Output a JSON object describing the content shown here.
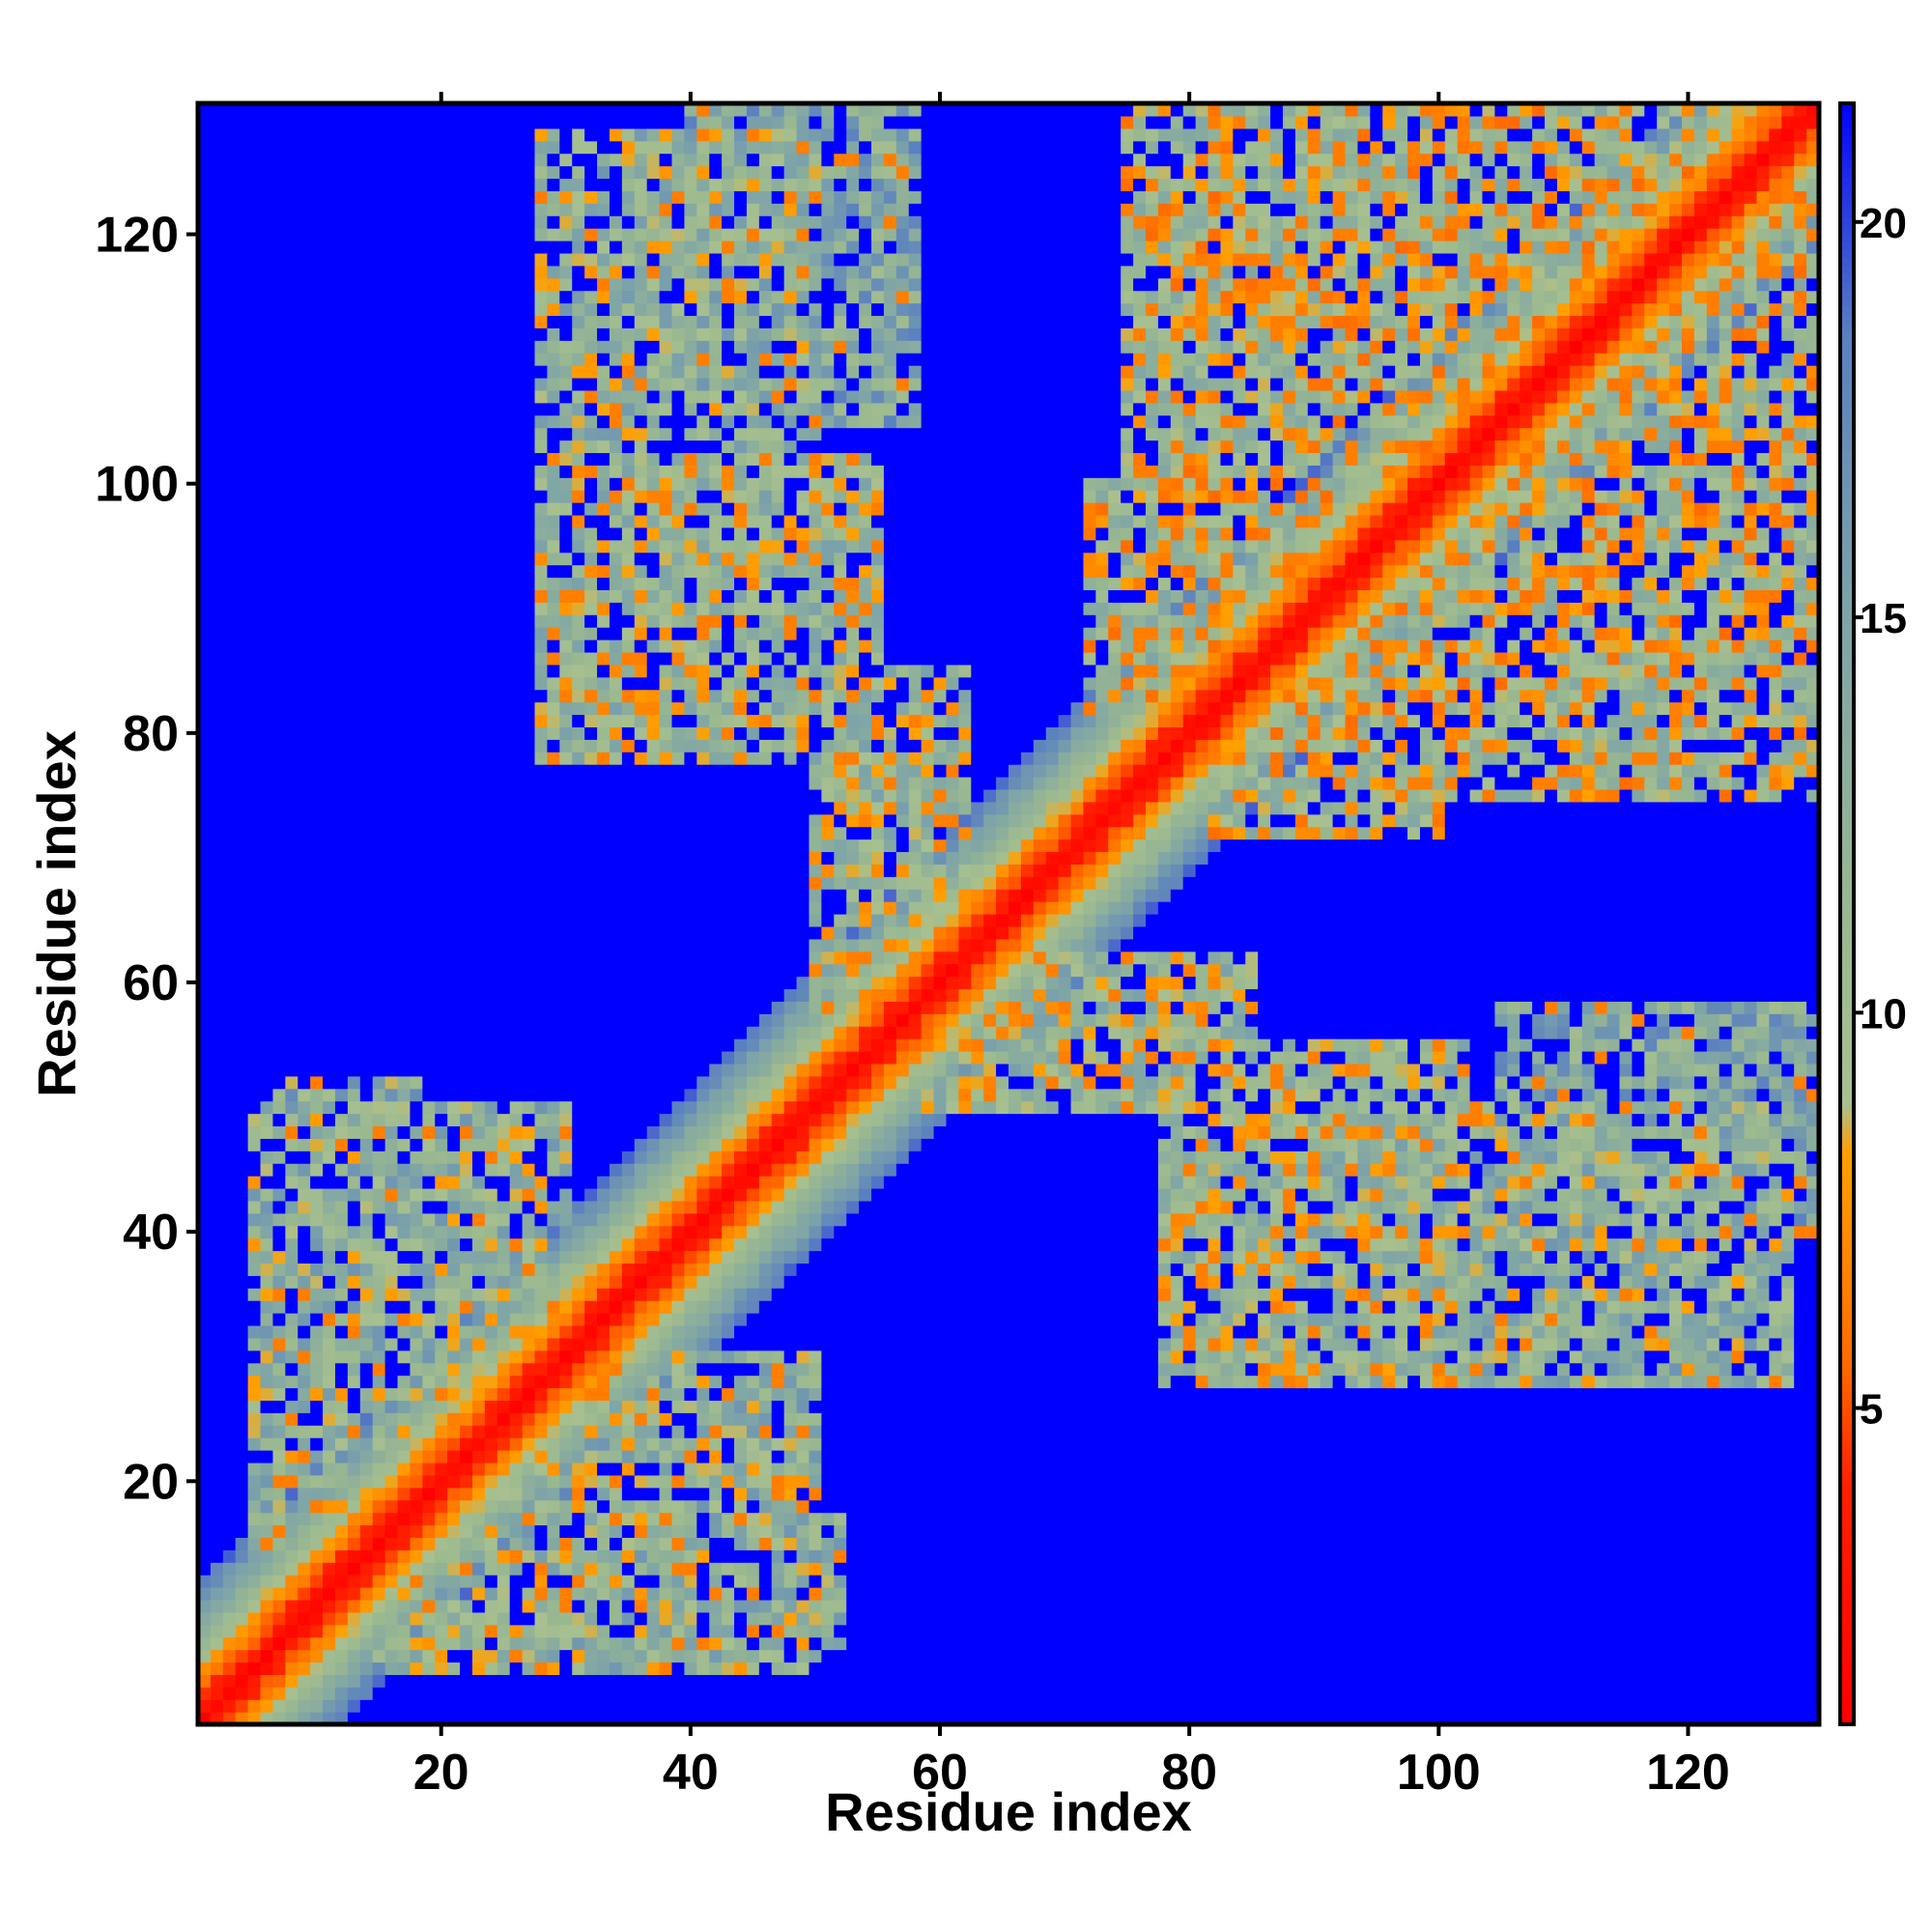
{
  "chart_data": {
    "type": "heatmap",
    "title": "",
    "xlabel": "Residue index",
    "ylabel": "Residue index",
    "n_residues": 130,
    "xlim": [
      0.5,
      130.5
    ],
    "ylim": [
      0.5,
      130.5
    ],
    "x_ticks": [
      20,
      40,
      60,
      80,
      100,
      120
    ],
    "y_ticks": [
      20,
      40,
      60,
      80,
      100,
      120
    ],
    "x_tick_labels": [
      "20",
      "40",
      "60",
      "80",
      "100",
      "120"
    ],
    "y_tick_labels": [
      "20",
      "40",
      "60",
      "80",
      "100",
      "120"
    ],
    "colorbar": {
      "min": 1,
      "max": 21.5,
      "ticks": [
        5,
        10,
        15,
        20
      ],
      "tick_labels": [
        "5",
        "10",
        "15",
        "20"
      ],
      "stops": [
        {
          "value": 1,
          "color": "#ff0000"
        },
        {
          "value": 4,
          "color": "#ff2000"
        },
        {
          "value": 5.5,
          "color": "#ff6a00"
        },
        {
          "value": 8.2,
          "color": "#ffa000"
        },
        {
          "value": 8.8,
          "color": "#a8c090"
        },
        {
          "value": 11,
          "color": "#9ab890"
        },
        {
          "value": 15,
          "color": "#7ea4a8"
        },
        {
          "value": 18.5,
          "color": "#5a80c0"
        },
        {
          "value": 21.5,
          "color": "#0000ff"
        }
      ]
    },
    "matrix_description": "symmetric residue distance map; diagonal band plus off-diagonal contact clusters",
    "background_value": 21.5,
    "contact_regions": [
      {
        "i": [
          5,
          30
        ],
        "j": [
          15,
          50
        ],
        "value": 12
      },
      {
        "i": [
          28,
          50
        ],
        "j": [
          85,
          128
        ],
        "value": 12
      },
      {
        "i": [
          30,
          52
        ],
        "j": [
          7,
          18
        ],
        "value": 13
      },
      {
        "i": [
          58,
          85
        ],
        "j": [
          50,
          62
        ],
        "value": 11
      },
      {
        "i": [
          78,
          102
        ],
        "j": [
          28,
          55
        ],
        "value": 11
      },
      {
        "i": [
          72,
          92
        ],
        "j": [
          82,
          100
        ],
        "value": 10
      },
      {
        "i": [
          76,
          131
        ],
        "j": [
          98,
          131
        ],
        "value": 10
      },
      {
        "i": [
          97,
          131
        ],
        "j": [
          75,
          100
        ],
        "value": 10
      },
      {
        "i": [
          105,
          130
        ],
        "j": [
          40,
          58
        ],
        "value": 14
      }
    ]
  }
}
